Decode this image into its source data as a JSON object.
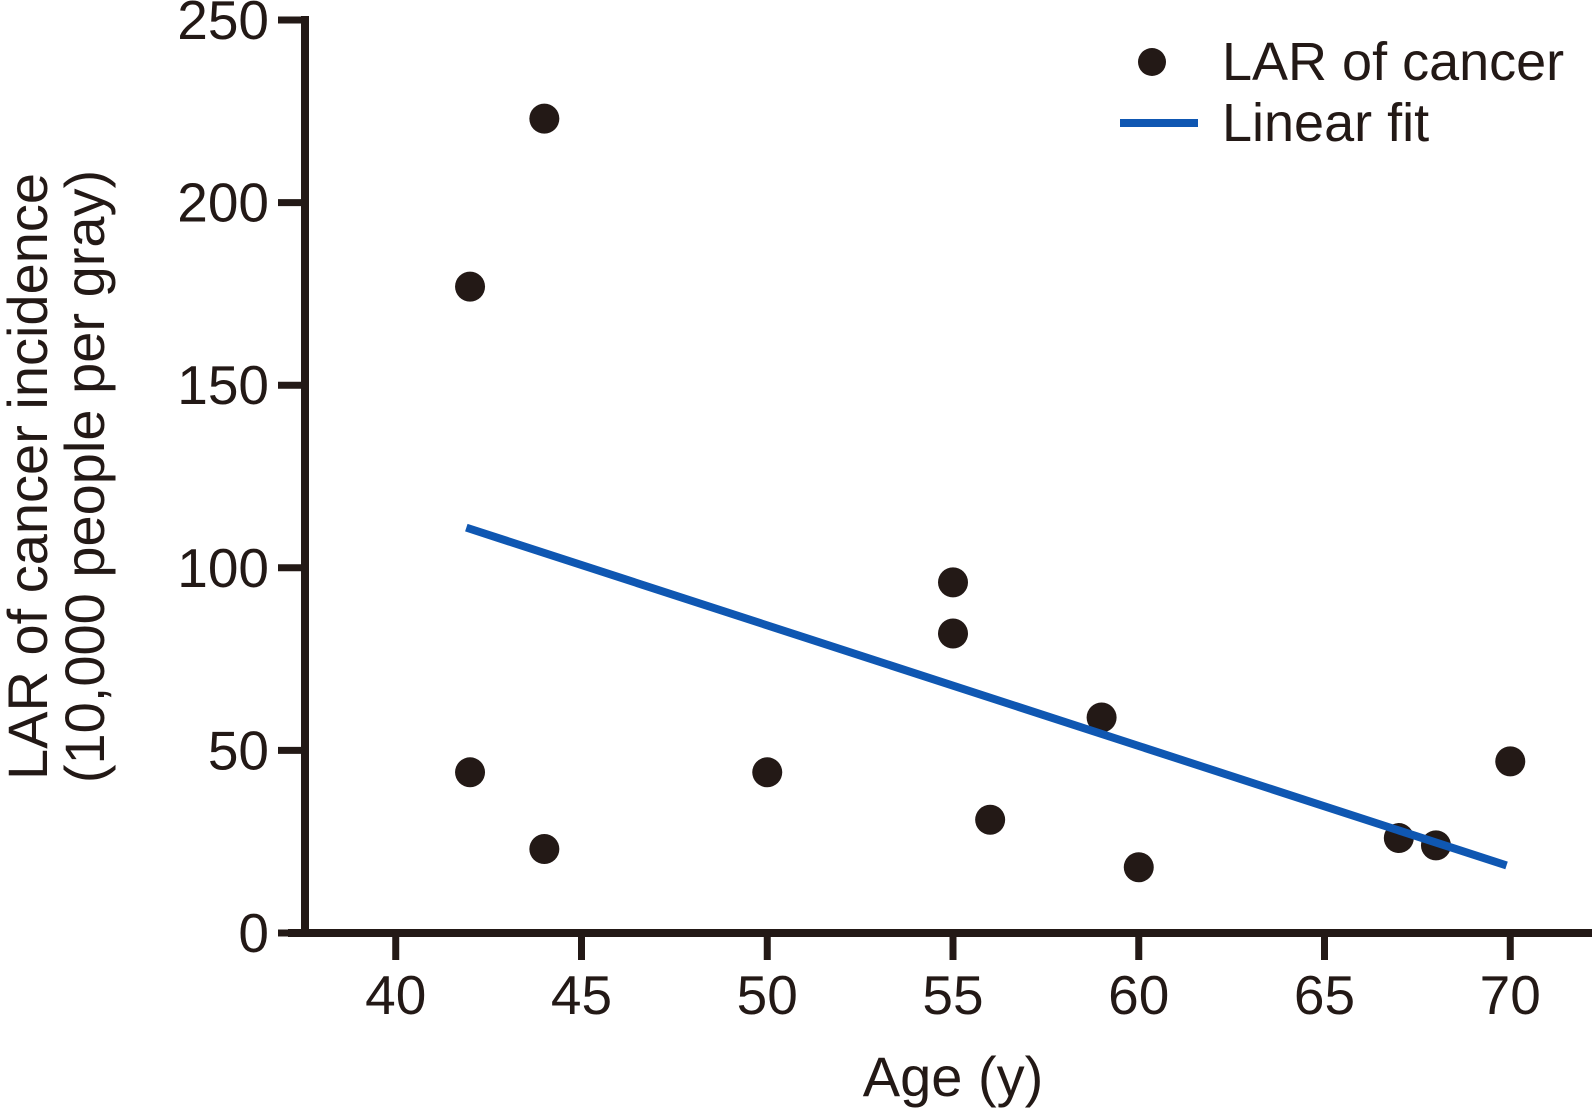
{
  "figure": {
    "background": "#ffffff",
    "ink_color": "#231916",
    "accent_color": "#0f57b2"
  },
  "legend": {
    "position": "top-right",
    "items": [
      {
        "label": "LAR of cancer",
        "marker": "dot",
        "color": "#231916"
      },
      {
        "label": "Linear fit",
        "marker": "line",
        "color": "#0f57b2"
      }
    ]
  },
  "chart_data": {
    "type": "scatter",
    "title": "",
    "xlabel": "Age (y)",
    "ylabel_lines": [
      "LAR of cancer incidence",
      "(10,000 people per gray)"
    ],
    "xlim": [
      37.1,
      72.2
    ],
    "ylim": [
      0,
      250
    ],
    "x_ticks": [
      40,
      45,
      50,
      55,
      60,
      65,
      70
    ],
    "y_ticks": [
      0,
      50,
      100,
      150,
      200,
      250
    ],
    "grid": false,
    "legend_position": "top-right",
    "series": [
      {
        "name": "LAR of cancer",
        "type": "scatter",
        "marker": "circle",
        "color": "#231916",
        "points": [
          [
            42,
            177
          ],
          [
            44,
            223
          ],
          [
            42,
            44
          ],
          [
            44,
            23
          ],
          [
            50,
            44
          ],
          [
            55,
            96
          ],
          [
            55,
            82
          ],
          [
            56,
            31
          ],
          [
            59,
            59
          ],
          [
            60,
            18
          ],
          [
            67,
            26
          ],
          [
            68,
            24
          ],
          [
            70,
            47
          ]
        ]
      },
      {
        "name": "Linear fit",
        "type": "line",
        "color": "#0f57b2",
        "points": [
          [
            41.9,
            111
          ],
          [
            69.9,
            18.5
          ]
        ]
      }
    ]
  }
}
